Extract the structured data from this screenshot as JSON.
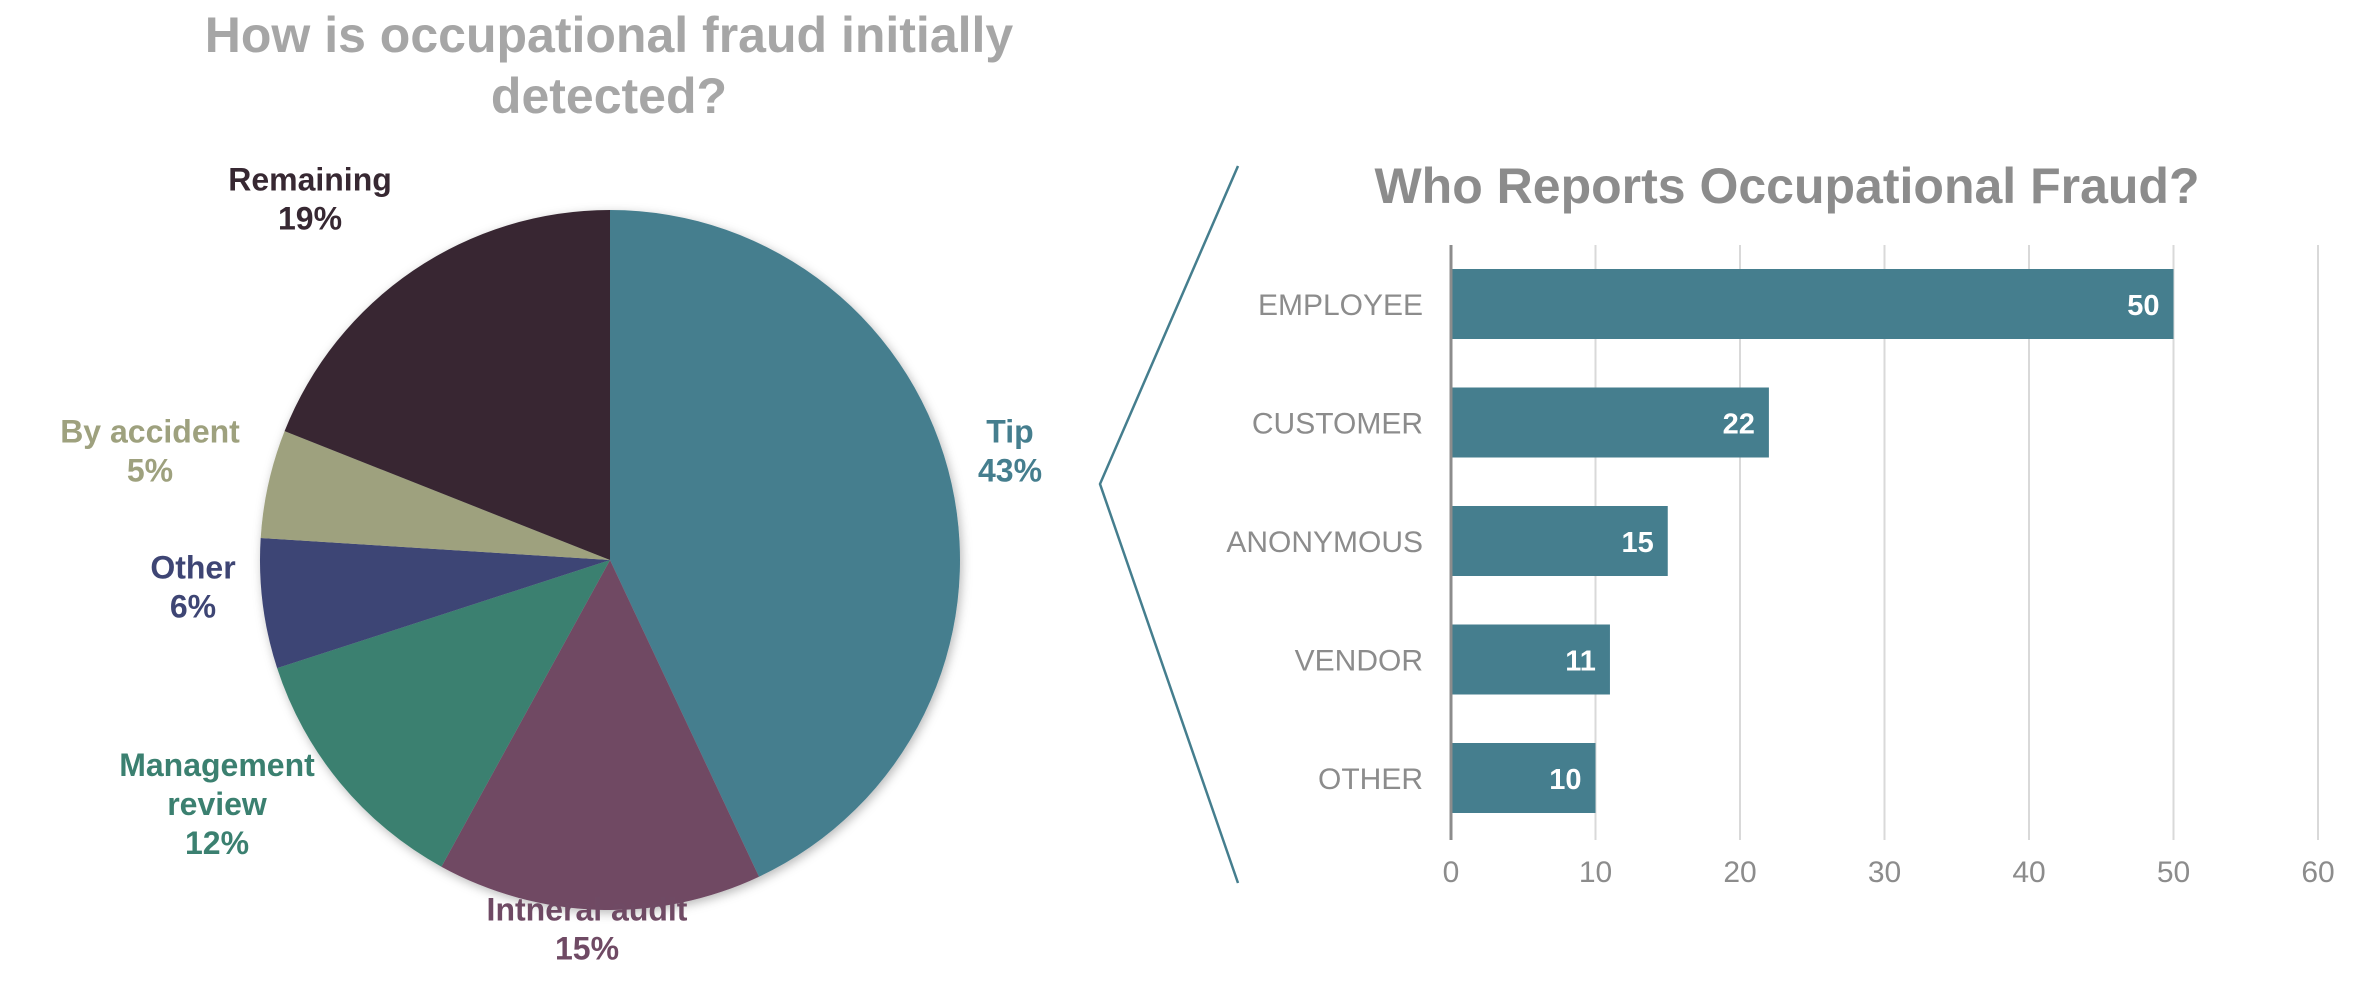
{
  "chart_data": [
    {
      "type": "pie",
      "title_lines": [
        "How is occupational fraud initially",
        "detected?"
      ],
      "slices": [
        {
          "label_lines": [
            "Tip"
          ],
          "value": 43,
          "value_label": "43%",
          "color": "#457e8e"
        },
        {
          "label_lines": [
            "Intneral audit"
          ],
          "value": 15,
          "value_label": "15%",
          "color": "#6f4a64"
        },
        {
          "label_lines": [
            "Management",
            "review"
          ],
          "value": 12,
          "value_label": "12%",
          "color": "#3b8070"
        },
        {
          "label_lines": [
            "Other"
          ],
          "value": 6,
          "value_label": "6%",
          "color": "#3e4574"
        },
        {
          "label_lines": [
            "By accident"
          ],
          "value": 5,
          "value_label": "5%",
          "color": "#9ea17e"
        },
        {
          "label_lines": [
            "Remaining"
          ],
          "value": 19,
          "value_label": "19%",
          "color": "#372832"
        }
      ],
      "start": "12 o'clock",
      "direction": "clockwise",
      "legend": "none (labels beside slices)"
    },
    {
      "type": "bar",
      "orientation": "horizontal",
      "title": "Who Reports Occupational Fraud?",
      "categories": [
        "EMPLOYEE",
        "CUSTOMER",
        "ANONYMOUS",
        "VENDOR",
        "OTHER"
      ],
      "values": [
        50,
        22,
        15,
        11,
        10
      ],
      "value_labels": [
        "50",
        "22",
        "15",
        "11",
        "10"
      ],
      "xlim": [
        0,
        60
      ],
      "xticks": [
        "0",
        "10",
        "20",
        "30",
        "40",
        "50",
        "60"
      ],
      "grid": "vertical",
      "bar_color": "#457e8e",
      "legend": "none"
    }
  ],
  "colors": {
    "pie_title": "#a6a6a6",
    "bar_title": "#8c8c8c",
    "axis_text": "#8c8c8c",
    "gridline": "#d9d9d9",
    "connector": "#457e8e",
    "value_text": "#ffffff"
  }
}
